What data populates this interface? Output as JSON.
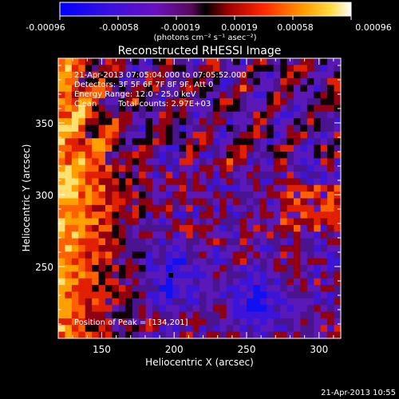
{
  "chart_data": {
    "type": "heatmap",
    "title": "Reconstructed RHESSI Image",
    "xlabel": "Heliocentric X (arcsec)",
    "ylabel": "Heliocentric Y (arcsec)",
    "xlim": [
      120,
      315
    ],
    "ylim": [
      200,
      395
    ],
    "x_ticks": [
      150,
      200,
      250,
      300
    ],
    "y_ticks": [
      250,
      300,
      350
    ],
    "colorbar": {
      "ticks": [
        "-0.00096",
        "-0.00058",
        "-0.00019",
        "0.00019",
        "0.00058",
        "0.00096"
      ],
      "range": [
        -0.00096,
        0.00096
      ],
      "unit_label": "(photons cm⁻² s⁻¹ asec⁻²)",
      "colors": [
        "#0000ff",
        "#6a00c8",
        "#a000a0",
        "#000000",
        "#c80000",
        "#ff5000",
        "#ffb400",
        "#ffffff"
      ]
    },
    "annotations": [
      "21-Apr-2013 07:05:04.000 to 07:05:52.000",
      "Detectors: 3F 5F 6F 7F 8F 9F, Att 0",
      "Energy Range: 12.0 - 25.0 keV",
      "Clean",
      "Total counts: 2.97E+03"
    ],
    "peak_label": "Position of Peak = [134,201]",
    "peak_position": [
      134,
      201
    ],
    "grid": false
  },
  "footer_timestamp": "21-Apr-2013 10:55"
}
